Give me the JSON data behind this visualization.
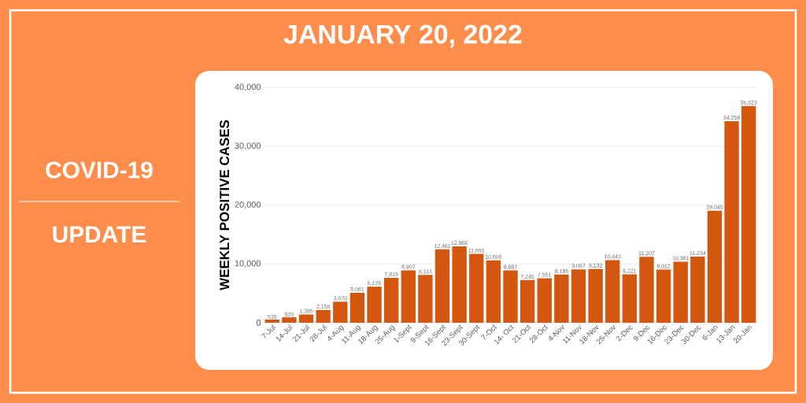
{
  "chart_data": {
    "type": "bar",
    "title": "JANUARY 20, 2022",
    "annotations": [
      "COVID-19",
      "UPDATE"
    ],
    "ylabel": "WEEKLY POSITIVE CASES",
    "categories": [
      "7-Jul",
      "14-Jul",
      "21-Jul",
      "28-Jul",
      "4-Aug",
      "11-Aug",
      "18-Aug",
      "25-Aug",
      "1-Sept",
      "9-Sept",
      "16-Sept",
      "23-Sept",
      "30-Sept",
      "7-Oct",
      "14- Oct",
      "21-Oct",
      "28-Oct",
      "4-Nov",
      "11-Nov",
      "18-Nov",
      "25-Nov",
      "2-Dec",
      "9-Dec",
      "16-Dec",
      "23-Dec",
      "30-Dec",
      "6-Jan",
      "13-Jan",
      "20-Jan"
    ],
    "values": [
      535,
      920,
      1395,
      2158,
      3570,
      5081,
      6125,
      7619,
      8907,
      8113,
      12461,
      12966,
      11691,
      10605,
      8887,
      7245,
      7551,
      8186,
      9067,
      9132,
      10643,
      8221,
      11207,
      9012,
      10381,
      11234,
      19045,
      34258,
      36823
    ],
    "color": "#d3570f",
    "ylim": [
      0,
      40000
    ],
    "yticks": [
      {
        "value": 0,
        "label": "0"
      },
      {
        "value": 10000,
        "label": "10,000"
      },
      {
        "value": 20000,
        "label": "20,000"
      },
      {
        "value": 30000,
        "label": "30,000"
      },
      {
        "value": 40000,
        "label": "40,000"
      }
    ],
    "grid": "y",
    "value_labels": [
      "535",
      "920",
      "1,395",
      "2,158",
      "3,570",
      "5,081",
      "6,125",
      "7,619",
      "8,907",
      "8,113",
      "12,461",
      "12,966",
      "11,691",
      "10,605",
      "8,887",
      "7,245",
      "7,551",
      "8,186",
      "9,067",
      "9,132",
      "10,643",
      "8,221",
      "11,207",
      "9,012",
      "10,381",
      "11,234",
      "19,045",
      "34,258",
      "36,823"
    ]
  }
}
